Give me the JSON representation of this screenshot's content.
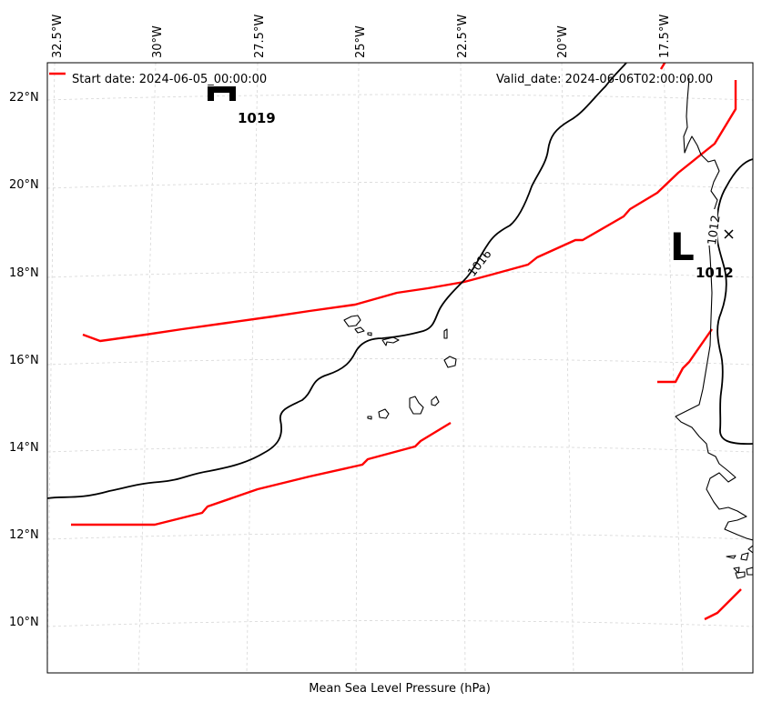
{
  "map": {
    "caption": "Mean Sea Level Pressure (hPa)",
    "start_date": "Start date: 2024-06-05_00:00:00",
    "valid_date": "Valid_date: 2024-06-06T02:00:00.00",
    "lon_ticks": [
      "32.5°W",
      "30°W",
      "27.5°W",
      "25°W",
      "22.5°W",
      "20°W",
      "17.5°W"
    ],
    "lat_ticks": [
      "22°N",
      "20°N",
      "18°N",
      "16°N",
      "14°N",
      "12°N",
      "10°N"
    ],
    "high": {
      "symbol": "H",
      "value": "1019"
    },
    "low": {
      "symbol": "L",
      "value": "1012"
    },
    "isobar_labels": [
      "1016",
      "1012"
    ],
    "colors": {
      "isobar": "#000000",
      "red_contour": "#ff0000",
      "coast": "#000000",
      "grid": "#cccccc"
    }
  }
}
